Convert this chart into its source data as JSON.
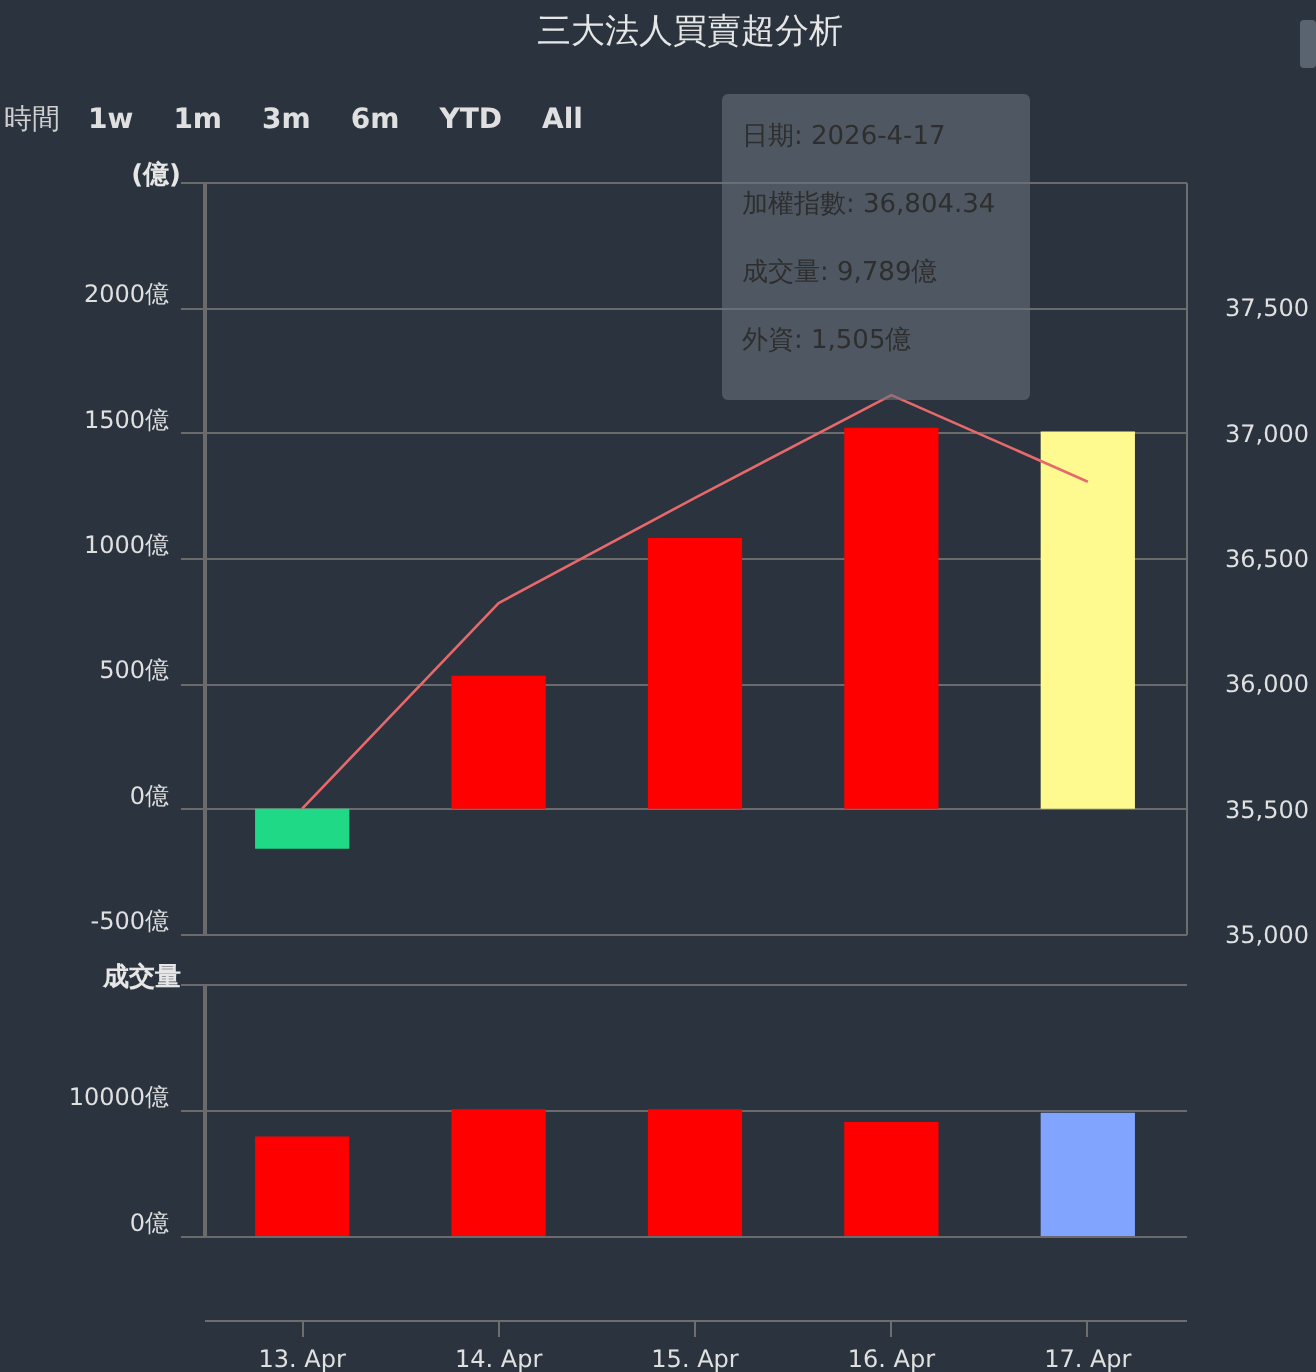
{
  "chart_data": [
    {
      "type": "other",
      "annotations": [
        "時間",
        "1w",
        "1m",
        "3m",
        "6m",
        "YTD",
        "All"
      ]
    },
    {
      "type": "bar",
      "title": "三大法人買賣超分析",
      "ylabel": "(億)",
      "categories": [
        null,
        null,
        null,
        null,
        null
      ],
      "ylim": [
        -500,
        2500
      ],
      "yticks": [
        {
          "value": -500,
          "label": "-500億"
        },
        {
          "value": 0,
          "label": "0億"
        },
        {
          "value": 500,
          "label": "500億"
        },
        {
          "value": 1000,
          "label": "1000億"
        },
        {
          "value": 1500,
          "label": "1500億"
        },
        {
          "value": 2000,
          "label": "2000億"
        },
        {
          "value": 2500,
          "label": null
        }
      ],
      "y2lim": [
        35000,
        38000
      ],
      "y2ticks": [
        {
          "value": 35000,
          "label": "35,000"
        },
        {
          "value": 35500,
          "label": "35,500"
        },
        {
          "value": 36000,
          "label": "36,000"
        },
        {
          "value": 36500,
          "label": "36,500"
        },
        {
          "value": 37000,
          "label": "37,000"
        },
        {
          "value": 37500,
          "label": "37,500"
        }
      ],
      "series": [
        {
          "type": "bar",
          "values": [
            -160,
            530,
            1080,
            1520,
            1505
          ],
          "colors": [
            "#20d986",
            "#ff0000",
            "#ff0000",
            "#ff0000",
            "#fffa90"
          ]
        },
        {
          "type": "line",
          "axis": "y2",
          "color": "#e8696b",
          "values": [
            35500,
            36320,
            36740,
            37150,
            36804.34
          ]
        }
      ],
      "grid": true,
      "tick_labels": "y",
      "annotations": [
        "日期: 2026-4-17",
        "加權指數: 36,804.34",
        "成交量: 9,789億",
        "外資: 1,505億"
      ]
    },
    {
      "type": "bar",
      "ylabel": "成交量",
      "categories": [
        "13. Apr",
        "14. Apr",
        "15. Apr",
        "16. Apr",
        "17. Apr"
      ],
      "ylim": [
        0,
        20000
      ],
      "yticks": [
        {
          "value": 0,
          "label": "0億"
        },
        {
          "value": 10000,
          "label": "10000億"
        },
        {
          "value": 20000,
          "label": null
        }
      ],
      "series": [
        {
          "values": [
            7900,
            10050,
            10050,
            9050,
            9789
          ],
          "colors": [
            "#ff0000",
            "#ff0000",
            "#ff0000",
            "#ff0000",
            "#80a4ff"
          ]
        }
      ],
      "grid": true
    }
  ]
}
